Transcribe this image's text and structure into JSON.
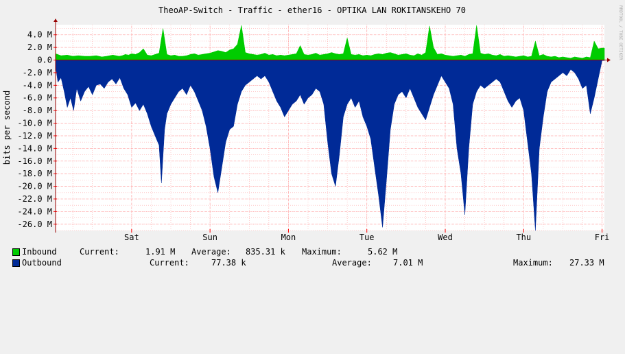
{
  "chart_data": {
    "type": "area",
    "title": "TheoAP-Switch - Traffic - ether16 - OPTIKA LAN ROKITANSKEHO 70",
    "ylabel": "bits per second",
    "watermark": "RRDTOOL / TOBI OETIKER",
    "ylim": [
      -27000000,
      5600000
    ],
    "y_ticks": [
      "4.0 M",
      "2.0 M",
      "0.0",
      "-2.0 M",
      "-4.0 M",
      "-6.0 M",
      "-8.0 M",
      "-10.0 M",
      "-12.0 M",
      "-14.0 M",
      "-16.0 M",
      "-18.0 M",
      "-20.0 M",
      "-22.0 M",
      "-24.0 M",
      "-26.0 M"
    ],
    "y_tick_values": [
      4,
      2,
      0,
      -2,
      -4,
      -6,
      -8,
      -10,
      -12,
      -14,
      -16,
      -18,
      -20,
      -22,
      -24,
      -26
    ],
    "x_ticks": [
      "Sat",
      "Sun",
      "Mon",
      "Tue",
      "Wed",
      "Thu",
      "Fri"
    ],
    "x_tick_positions": [
      1.0,
      2.0,
      3.0,
      4.0,
      5.0,
      6.0,
      7.0
    ],
    "xlim": [
      0.03,
      7.03
    ],
    "grid": true,
    "colors": {
      "inbound": "#00cc00",
      "outbound": "#002a97",
      "grid": "#ffaaaa",
      "arrow": "#990000",
      "background": "#f0f0f0",
      "canvas": "#ffffff"
    },
    "series": [
      {
        "name": "Inbound",
        "x": [
          0.03,
          0.1,
          0.18,
          0.25,
          0.32,
          0.4,
          0.47,
          0.55,
          0.62,
          0.68,
          0.72,
          0.76,
          0.8,
          0.84,
          0.88,
          0.92,
          0.96,
          1.0,
          1.05,
          1.1,
          1.15,
          1.2,
          1.25,
          1.3,
          1.35,
          1.4,
          1.45,
          1.5,
          1.55,
          1.6,
          1.65,
          1.7,
          1.75,
          1.8,
          1.85,
          1.9,
          1.95,
          2.0,
          2.05,
          2.1,
          2.15,
          2.2,
          2.25,
          2.3,
          2.35,
          2.4,
          2.45,
          2.5,
          2.55,
          2.6,
          2.65,
          2.7,
          2.75,
          2.8,
          2.85,
          2.9,
          2.95,
          3.0,
          3.05,
          3.1,
          3.15,
          3.2,
          3.25,
          3.3,
          3.35,
          3.4,
          3.45,
          3.5,
          3.55,
          3.6,
          3.65,
          3.7,
          3.75,
          3.8,
          3.85,
          3.9,
          3.95,
          4.0,
          4.05,
          4.1,
          4.15,
          4.2,
          4.25,
          4.3,
          4.35,
          4.4,
          4.45,
          4.5,
          4.55,
          4.6,
          4.65,
          4.7,
          4.75,
          4.8,
          4.85,
          4.9,
          4.95,
          5.0,
          5.05,
          5.1,
          5.15,
          5.2,
          5.25,
          5.3,
          5.35,
          5.4,
          5.45,
          5.5,
          5.55,
          5.6,
          5.65,
          5.7,
          5.75,
          5.8,
          5.85,
          5.9,
          5.95,
          6.0,
          6.05,
          6.1,
          6.15,
          6.2,
          6.25,
          6.3,
          6.35,
          6.4,
          6.45,
          6.5,
          6.55,
          6.6,
          6.65,
          6.7,
          6.75,
          6.8,
          6.85,
          6.9,
          6.95,
          7.0,
          7.03
        ],
        "values": [
          1.0,
          0.7,
          0.8,
          0.6,
          0.7,
          0.6,
          0.6,
          0.7,
          0.5,
          0.6,
          0.7,
          0.8,
          0.7,
          0.6,
          0.7,
          0.9,
          0.8,
          1.0,
          0.9,
          1.2,
          1.8,
          0.8,
          0.7,
          0.9,
          1.1,
          5.0,
          0.9,
          0.7,
          0.8,
          0.6,
          0.6,
          0.7,
          0.9,
          1.0,
          0.8,
          0.9,
          1.0,
          1.1,
          1.3,
          1.5,
          1.4,
          1.2,
          1.6,
          1.8,
          2.5,
          5.5,
          1.2,
          1.0,
          0.9,
          0.8,
          0.9,
          1.1,
          0.8,
          0.9,
          0.7,
          0.8,
          0.7,
          0.8,
          0.9,
          1.0,
          2.3,
          0.9,
          0.8,
          0.9,
          1.1,
          0.8,
          0.9,
          1.0,
          1.2,
          1.0,
          0.9,
          1.0,
          3.5,
          0.9,
          0.8,
          0.9,
          0.7,
          0.8,
          0.7,
          0.9,
          1.0,
          0.9,
          1.1,
          1.2,
          1.0,
          0.8,
          0.9,
          1.0,
          0.8,
          0.7,
          1.0,
          0.8,
          1.2,
          5.4,
          2.0,
          0.9,
          1.0,
          0.8,
          0.7,
          0.6,
          0.7,
          0.8,
          0.6,
          0.9,
          1.0,
          5.5,
          1.1,
          0.9,
          1.0,
          0.8,
          0.7,
          0.9,
          0.6,
          0.7,
          0.6,
          0.5,
          0.6,
          0.7,
          0.5,
          0.6,
          3.0,
          0.7,
          0.9,
          0.6,
          0.5,
          0.6,
          0.4,
          0.5,
          0.4,
          0.3,
          0.5,
          0.4,
          0.3,
          0.5,
          0.4,
          3.0,
          1.8,
          1.91,
          1.91
        ]
      },
      {
        "name": "Outbound",
        "x": [
          0.03,
          0.06,
          0.1,
          0.14,
          0.18,
          0.22,
          0.26,
          0.3,
          0.35,
          0.4,
          0.45,
          0.5,
          0.55,
          0.6,
          0.65,
          0.7,
          0.75,
          0.8,
          0.85,
          0.9,
          0.95,
          1.0,
          1.05,
          1.1,
          1.15,
          1.2,
          1.25,
          1.3,
          1.35,
          1.38,
          1.42,
          1.45,
          1.5,
          1.55,
          1.6,
          1.65,
          1.7,
          1.75,
          1.8,
          1.85,
          1.9,
          1.95,
          2.0,
          2.05,
          2.1,
          2.15,
          2.2,
          2.25,
          2.3,
          2.35,
          2.4,
          2.45,
          2.5,
          2.55,
          2.6,
          2.65,
          2.7,
          2.75,
          2.8,
          2.85,
          2.9,
          2.95,
          3.0,
          3.05,
          3.1,
          3.15,
          3.2,
          3.25,
          3.3,
          3.35,
          3.4,
          3.45,
          3.5,
          3.55,
          3.6,
          3.65,
          3.7,
          3.75,
          3.8,
          3.85,
          3.9,
          3.95,
          4.0,
          4.05,
          4.1,
          4.15,
          4.2,
          4.25,
          4.3,
          4.35,
          4.4,
          4.45,
          4.5,
          4.55,
          4.6,
          4.65,
          4.7,
          4.75,
          4.8,
          4.85,
          4.9,
          4.95,
          5.0,
          5.05,
          5.1,
          5.15,
          5.2,
          5.25,
          5.3,
          5.35,
          5.4,
          5.45,
          5.5,
          5.55,
          5.6,
          5.65,
          5.7,
          5.75,
          5.8,
          5.85,
          5.9,
          5.95,
          6.0,
          6.05,
          6.1,
          6.15,
          6.2,
          6.25,
          6.3,
          6.35,
          6.4,
          6.45,
          6.5,
          6.55,
          6.6,
          6.65,
          6.7,
          6.75,
          6.8,
          6.85,
          6.9,
          6.95,
          7.0,
          7.03
        ],
        "values": [
          -1.0,
          -3.5,
          -2.8,
          -5.0,
          -7.5,
          -6.0,
          -8.0,
          -4.5,
          -6.5,
          -5.0,
          -4.2,
          -5.5,
          -4.0,
          -3.8,
          -4.5,
          -3.5,
          -3.0,
          -3.8,
          -2.8,
          -4.5,
          -5.5,
          -7.5,
          -6.8,
          -8.0,
          -7.0,
          -8.5,
          -10.5,
          -12.0,
          -13.5,
          -19.5,
          -11.0,
          -8.5,
          -7.0,
          -6.0,
          -5.0,
          -4.5,
          -5.5,
          -4.0,
          -5.0,
          -6.5,
          -8.0,
          -10.5,
          -14.0,
          -18.5,
          -21.0,
          -17.0,
          -13.0,
          -11.0,
          -10.5,
          -7.0,
          -5.0,
          -4.0,
          -3.5,
          -3.0,
          -2.5,
          -3.0,
          -2.5,
          -3.5,
          -5.0,
          -6.5,
          -7.5,
          -9.0,
          -8.0,
          -7.0,
          -6.5,
          -5.5,
          -7.0,
          -6.0,
          -5.5,
          -4.5,
          -5.0,
          -7.0,
          -13.0,
          -18.0,
          -20.0,
          -15.0,
          -9.0,
          -7.0,
          -6.0,
          -7.5,
          -6.5,
          -9.0,
          -10.5,
          -12.5,
          -17.0,
          -21.5,
          -26.5,
          -19.0,
          -11.0,
          -7.0,
          -5.5,
          -5.0,
          -6.0,
          -4.5,
          -6.0,
          -7.5,
          -8.5,
          -9.5,
          -7.5,
          -5.5,
          -4.0,
          -2.5,
          -3.5,
          -4.5,
          -7.0,
          -14.0,
          -18.0,
          -24.5,
          -14.0,
          -7.0,
          -5.0,
          -4.0,
          -4.5,
          -4.0,
          -3.5,
          -3.0,
          -3.5,
          -5.0,
          -6.5,
          -7.5,
          -6.5,
          -6.0,
          -8.0,
          -13.0,
          -18.0,
          -27.0,
          -14.0,
          -9.0,
          -5.0,
          -3.5,
          -3.0,
          -2.5,
          -2.0,
          -2.5,
          -1.5,
          -2.0,
          -3.0,
          -4.5,
          -4.0,
          -8.5,
          -6.0,
          -3.0,
          -0.08,
          -0.08
        ]
      }
    ],
    "legend": {
      "inbound": {
        "label": "Inbound",
        "current_label": "Current:",
        "current": "1.91 M",
        "average_label": "Average:",
        "average": "835.31 k",
        "maximum_label": "Maximum:",
        "maximum": "5.62 M"
      },
      "outbound": {
        "label": "Outbound",
        "current_label": "Current:",
        "current": "77.38 k",
        "average_label": "Average:",
        "average": "7.01 M",
        "maximum_label": "Maximum:",
        "maximum": "27.33 M"
      }
    }
  }
}
